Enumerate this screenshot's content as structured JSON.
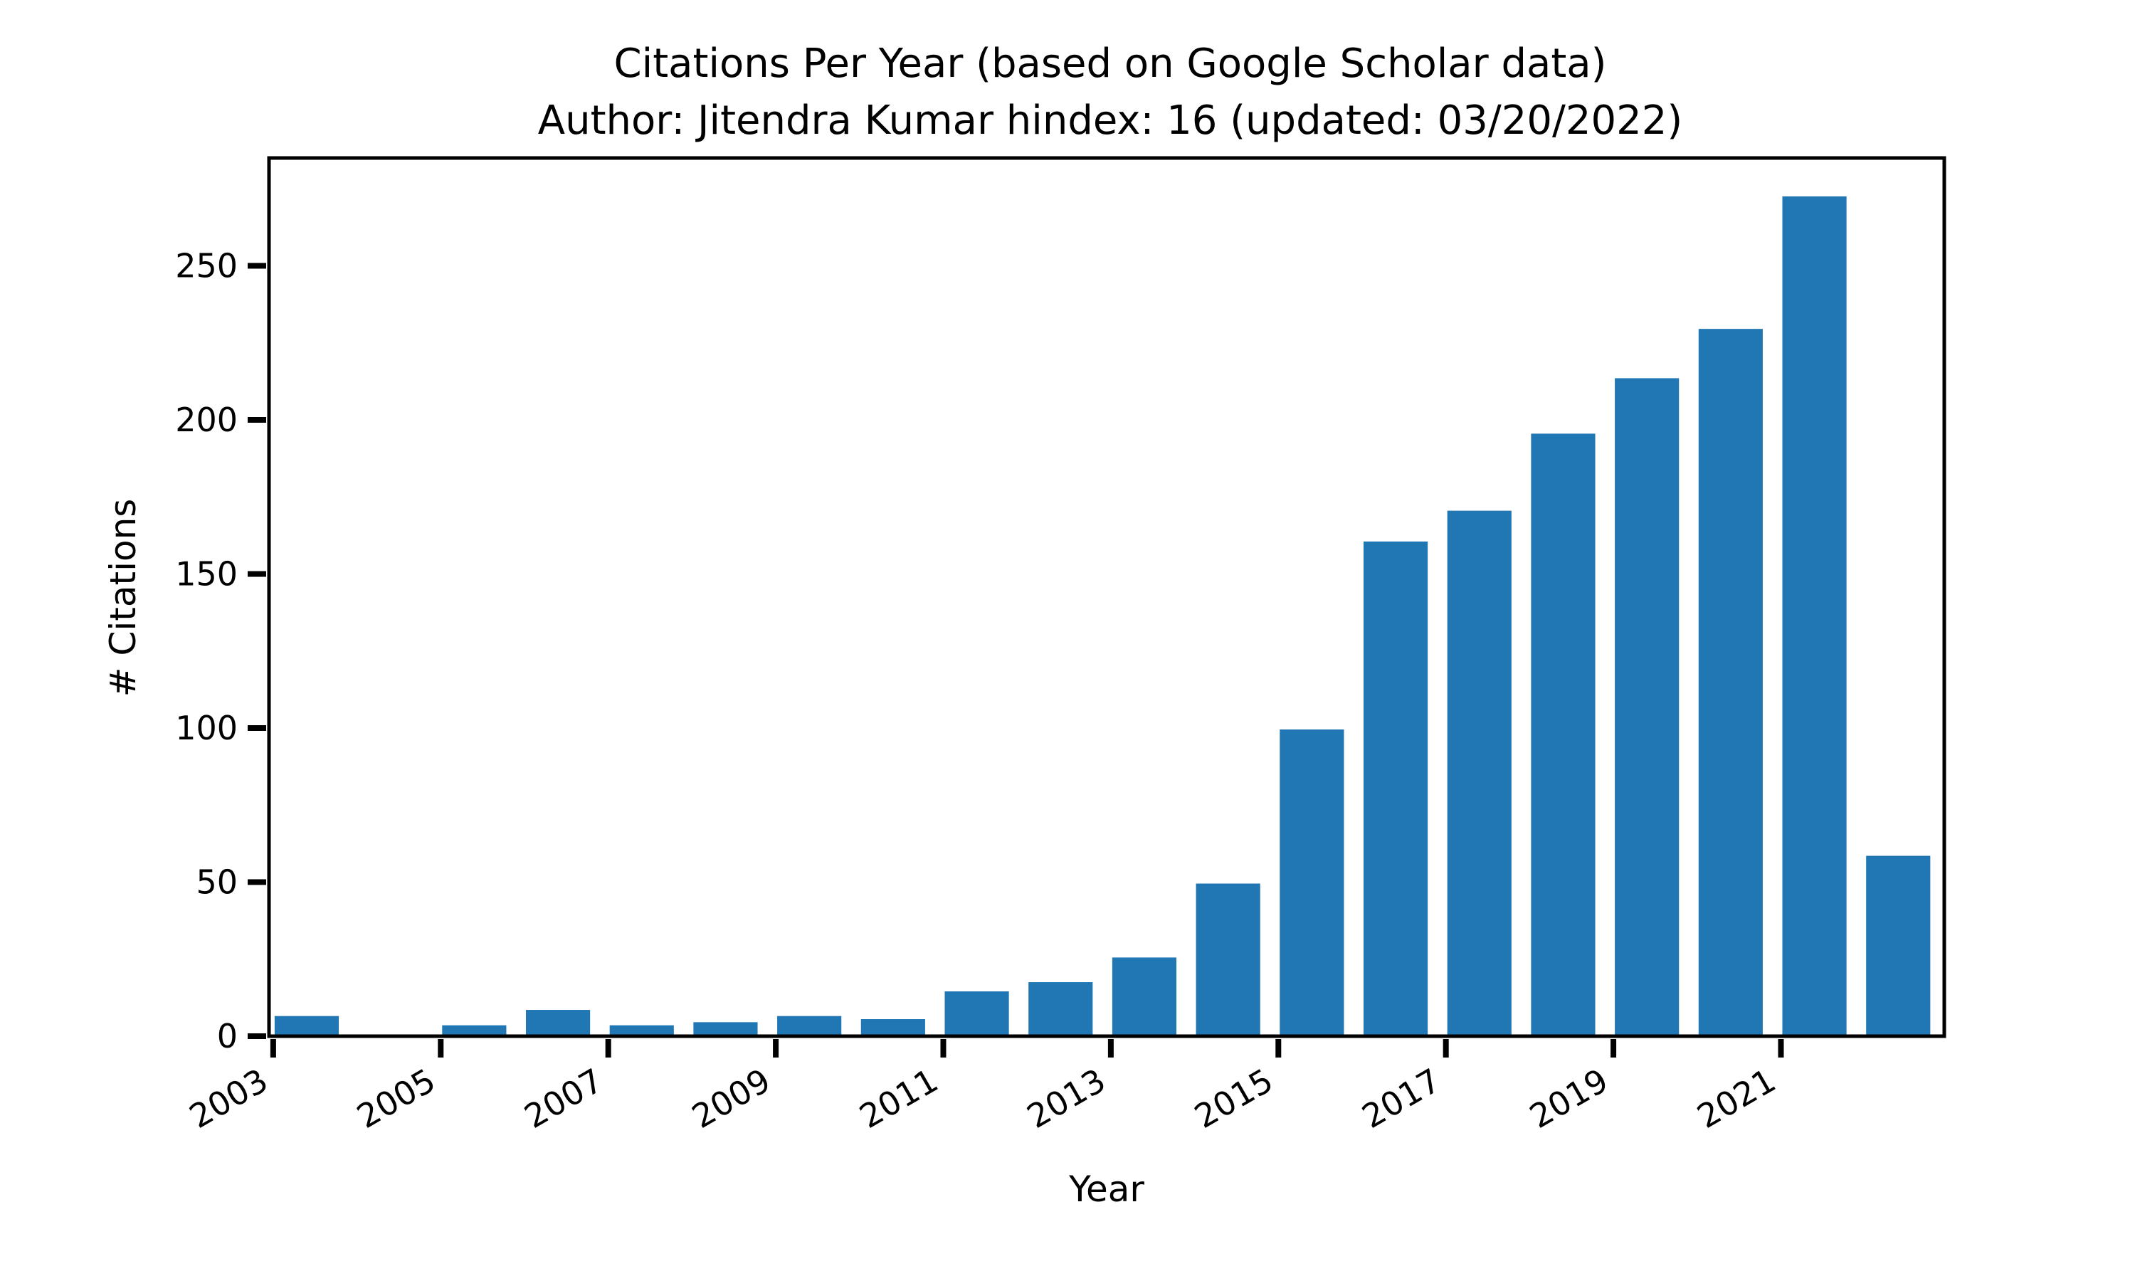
{
  "chart_data": {
    "type": "bar",
    "title": "Citations Per Year (based on Google Scholar data)",
    "subtitle": "Author: Jitendra Kumar hindex: 16 (updated: 03/20/2022)",
    "xlabel": "Year",
    "ylabel": "# Citations",
    "x": [
      2003,
      2004,
      2005,
      2006,
      2007,
      2008,
      2009,
      2010,
      2011,
      2012,
      2013,
      2014,
      2015,
      2016,
      2017,
      2018,
      2019,
      2020,
      2021,
      2022
    ],
    "values": [
      7,
      0,
      4,
      9,
      4,
      5,
      7,
      6,
      15,
      18,
      26,
      50,
      100,
      161,
      171,
      196,
      214,
      230,
      273,
      59
    ],
    "xticks": [
      2003,
      2005,
      2007,
      2009,
      2011,
      2013,
      2015,
      2017,
      2019,
      2021
    ],
    "yticks": [
      0,
      50,
      100,
      150,
      200,
      250
    ],
    "xlim": [
      2002.95,
      2022.95
    ],
    "ylim": [
      0,
      285
    ],
    "color": "#2077b4",
    "grid": false,
    "legend": "none"
  }
}
